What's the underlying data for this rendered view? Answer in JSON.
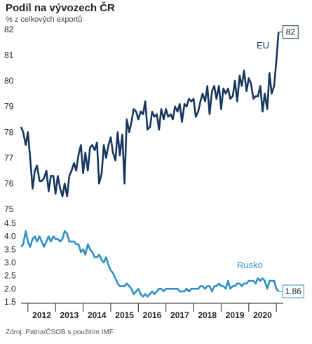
{
  "header": {
    "title": "Podíl na vývozech ČR",
    "subtitle": "% z celkových exportů"
  },
  "footer": {
    "source": "Zdroj: Patria/ČSOB s použitím IMF"
  },
  "chart_data": [
    {
      "type": "line",
      "ylim": [
        75,
        82
      ],
      "yticks": [
        "75",
        "76",
        "77",
        "78",
        "79",
        "80",
        "81",
        "82"
      ],
      "xticks": [
        "2012",
        "2013",
        "2014",
        "2015",
        "2016",
        "2017",
        "2018",
        "2019",
        "2020"
      ],
      "xlim": [
        2011.25,
        2020.75
      ],
      "grid": false,
      "series": [
        {
          "name": "EU",
          "color": "#17375e",
          "end_label": "82",
          "x": [
            2011.25,
            2011.33,
            2011.42,
            2011.5,
            2011.58,
            2011.67,
            2011.75,
            2011.83,
            2011.92,
            2012.0,
            2012.08,
            2012.17,
            2012.25,
            2012.33,
            2012.42,
            2012.5,
            2012.58,
            2012.67,
            2012.75,
            2012.83,
            2012.92,
            2013.0,
            2013.08,
            2013.17,
            2013.25,
            2013.33,
            2013.42,
            2013.5,
            2013.58,
            2013.67,
            2013.75,
            2013.83,
            2013.92,
            2014.0,
            2014.08,
            2014.17,
            2014.25,
            2014.33,
            2014.42,
            2014.5,
            2014.58,
            2014.67,
            2014.75,
            2014.83,
            2014.92,
            2015.0,
            2015.08,
            2015.17,
            2015.25,
            2015.33,
            2015.42,
            2015.5,
            2015.58,
            2015.67,
            2015.75,
            2015.83,
            2015.92,
            2016.0,
            2016.08,
            2016.17,
            2016.25,
            2016.33,
            2016.42,
            2016.5,
            2016.58,
            2016.67,
            2016.75,
            2016.83,
            2016.92,
            2017.0,
            2017.08,
            2017.17,
            2017.25,
            2017.33,
            2017.42,
            2017.5,
            2017.58,
            2017.67,
            2017.75,
            2017.83,
            2017.92,
            2018.0,
            2018.08,
            2018.17,
            2018.25,
            2018.33,
            2018.42,
            2018.5,
            2018.58,
            2018.67,
            2018.75,
            2018.83,
            2018.92,
            2019.0,
            2019.08,
            2019.17,
            2019.25,
            2019.33,
            2019.42,
            2019.5,
            2019.58,
            2019.67,
            2019.75,
            2019.83,
            2019.92,
            2020.0,
            2020.08,
            2020.17,
            2020.25,
            2020.33,
            2020.42,
            2020.5,
            2020.58
          ],
          "values": [
            78.2,
            78.0,
            77.5,
            78.0,
            77.0,
            75.8,
            76.5,
            76.7,
            76.1,
            76.1,
            76.2,
            76.5,
            75.7,
            76.3,
            76.3,
            75.6,
            76.3,
            75.8,
            75.5,
            76.0,
            75.5,
            76.3,
            76.5,
            76.8,
            76.5,
            77.1,
            77.5,
            76.4,
            77.2,
            76.5,
            77.4,
            77.5,
            77.3,
            77.6,
            76.0,
            76.4,
            77.5,
            77.0,
            77.5,
            77.8,
            77.2,
            76.9,
            78.0,
            77.1,
            77.9,
            76.0,
            78.5,
            78.0,
            78.4,
            78.9,
            78.8,
            78.5,
            78.8,
            78.7,
            79.2,
            78.1,
            78.2,
            78.8,
            78.6,
            78.7,
            78.1,
            78.9,
            78.5,
            78.9,
            78.6,
            78.7,
            78.5,
            79.0,
            78.8,
            79.1,
            78.4,
            79.1,
            79.0,
            79.3,
            79.2,
            79.3,
            78.6,
            78.8,
            79.2,
            79.5,
            79.2,
            79.8,
            78.7,
            79.6,
            79.8,
            79.3,
            79.8,
            78.9,
            79.7,
            79.5,
            79.7,
            79.3,
            79.4,
            80.0,
            79.2,
            80.2,
            79.8,
            80.4,
            79.6,
            80.1,
            79.9,
            79.3,
            79.4,
            79.4,
            79.8,
            78.8,
            79.5,
            78.9,
            80.3,
            79.5,
            79.8,
            80.8,
            81.9
          ]
        },
        {
          "name": "",
          "color": "#17375e",
          "x": [
            2019.25,
            2019.33,
            2019.42,
            2019.5,
            2019.58,
            2019.67,
            2019.75,
            2019.83,
            2019.92,
            2020.0,
            2020.08,
            2020.17,
            2020.25,
            2020.33,
            2020.42,
            2020.5,
            2020.58
          ],
          "values": [
            79.4,
            78.8,
            79.5,
            79.2,
            79.4,
            78.9,
            79.3,
            78.8,
            78.9,
            79.1,
            79.2,
            79.3,
            79.3,
            79.7,
            80.2,
            80.8,
            81.9
          ]
        }
      ]
    },
    {
      "type": "line",
      "ylim": [
        1.5,
        4.5
      ],
      "yticks": [
        "1.5",
        "2.0",
        "2.5",
        "3.0",
        "3.5",
        "4.0",
        "4.5"
      ],
      "xticks": [
        "2012",
        "2013",
        "2014",
        "2015",
        "2016",
        "2017",
        "2018",
        "2019",
        "2020"
      ],
      "xlim": [
        2011.25,
        2020.75
      ],
      "grid": false,
      "series": [
        {
          "name": "Rusko",
          "color": "#2e8fc7",
          "end_label": "1.86",
          "x": [
            2011.25,
            2011.33,
            2011.42,
            2011.5,
            2011.58,
            2011.67,
            2011.75,
            2011.83,
            2011.92,
            2012.0,
            2012.08,
            2012.17,
            2012.25,
            2012.33,
            2012.42,
            2012.5,
            2012.58,
            2012.67,
            2012.75,
            2012.83,
            2012.92,
            2013.0,
            2013.08,
            2013.17,
            2013.25,
            2013.33,
            2013.42,
            2013.5,
            2013.58,
            2013.67,
            2013.75,
            2013.83,
            2013.92,
            2014.0,
            2014.08,
            2014.17,
            2014.25,
            2014.33,
            2014.42,
            2014.5,
            2014.58,
            2014.67,
            2014.75,
            2014.83,
            2014.92,
            2015.0,
            2015.08,
            2015.17,
            2015.25,
            2015.33,
            2015.42,
            2015.5,
            2015.58,
            2015.67,
            2015.75,
            2015.83,
            2015.92,
            2016.0,
            2016.08,
            2016.17,
            2016.25,
            2016.33,
            2016.42,
            2016.5,
            2016.58,
            2016.67,
            2016.75,
            2016.83,
            2016.92,
            2017.0,
            2017.08,
            2017.17,
            2017.25,
            2017.33,
            2017.42,
            2017.5,
            2017.58,
            2017.67,
            2017.75,
            2017.83,
            2017.92,
            2018.0,
            2018.08,
            2018.17,
            2018.25,
            2018.33,
            2018.42,
            2018.5,
            2018.58,
            2018.67,
            2018.75,
            2018.83,
            2018.92,
            2019.0,
            2019.08,
            2019.17,
            2019.25,
            2019.33,
            2019.42,
            2019.5,
            2019.58,
            2019.67,
            2019.75,
            2019.83,
            2019.92,
            2020.0,
            2020.08,
            2020.17,
            2020.25,
            2020.33,
            2020.42,
            2020.5,
            2020.58
          ],
          "values": [
            3.6,
            3.7,
            4.2,
            3.8,
            3.6,
            3.9,
            4.0,
            3.8,
            4.0,
            3.8,
            3.6,
            3.8,
            4.0,
            3.8,
            4.0,
            3.9,
            3.9,
            3.8,
            3.9,
            4.2,
            4.1,
            3.8,
            3.8,
            3.8,
            3.7,
            3.7,
            3.4,
            3.5,
            3.3,
            3.7,
            3.5,
            3.4,
            3.2,
            3.2,
            3.3,
            3.1,
            3.0,
            3.2,
            2.9,
            2.7,
            2.6,
            2.4,
            2.2,
            2.1,
            2.1,
            2.1,
            2.2,
            2.1,
            2.0,
            1.8,
            1.9,
            2.0,
            1.8,
            1.7,
            1.8,
            1.7,
            1.8,
            1.9,
            1.8,
            1.9,
            2.0,
            2.0,
            1.9,
            2.0,
            2.0,
            2.0,
            2.0,
            2.0,
            2.0,
            1.9,
            1.9,
            1.9,
            2.0,
            1.9,
            2.0,
            2.0,
            2.0,
            2.0,
            2.1,
            2.1,
            2.0,
            2.1,
            2.1,
            1.9,
            2.1,
            2.1,
            2.2,
            2.1,
            2.1,
            2.0,
            2.3,
            2.0,
            2.1,
            2.1,
            2.2,
            2.2,
            2.1,
            2.2,
            2.2,
            2.3,
            2.3,
            2.3,
            2.2,
            2.4,
            2.3,
            2.4,
            2.3,
            2.0,
            2.3,
            2.3,
            2.3,
            2.0,
            1.9
          ]
        }
      ]
    }
  ]
}
